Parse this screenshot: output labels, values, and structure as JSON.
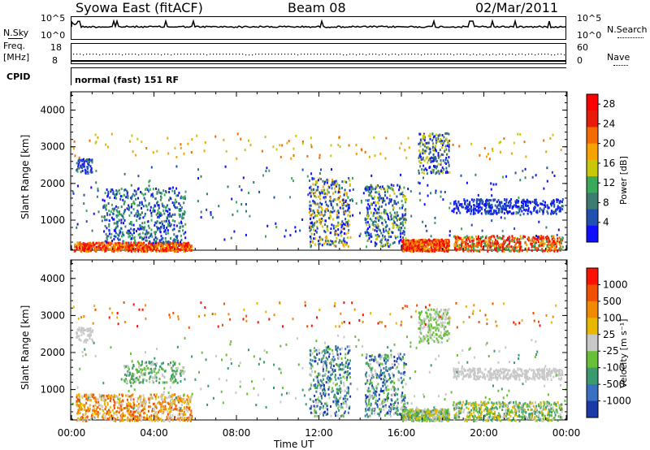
{
  "header": {
    "station": "Syowa East (fitACF)",
    "beam": "Beam 08",
    "date": "02/Mar/2011"
  },
  "top_panels": {
    "nsky_label": "N.Sky",
    "nsearch_label": "N.Search",
    "nsky_ticks": [
      "10^5",
      "10^0"
    ],
    "nsearch_ticks": [
      "10^5",
      "10^0"
    ],
    "freq_label_1": "Freq.",
    "freq_label_2": "[MHz]",
    "freq_ticks": [
      "18",
      "8"
    ],
    "nave_label": "Nave",
    "nave_ticks": [
      "60",
      "0"
    ],
    "cpid_label": "CPID",
    "cpid_value": "normal (fast) 151 RF"
  },
  "colors": {
    "power_scale": [
      "#1010ff",
      "#2050b0",
      "#3c7c70",
      "#3aaa58",
      "#c8c80a",
      "#f5a300",
      "#f56a00",
      "#e81a0a",
      "#ff0000"
    ],
    "velocity_scale": [
      "#1a3aa8",
      "#3a70c0",
      "#3c9a70",
      "#68c038",
      "#c8c8c8",
      "#e8b800",
      "#f08a00",
      "#f05000",
      "#ff1000"
    ]
  },
  "chart_data": [
    {
      "type": "heatmap",
      "ylabel": "Slant Range [km]",
      "xlabel": "",
      "x_ticks": [
        "00:00",
        "04:00",
        "08:00",
        "12:00",
        "16:00",
        "20:00",
        "00:00"
      ],
      "y_ticks": [
        "1000",
        "2000",
        "3000",
        "4000"
      ],
      "ylim": [
        180,
        4500
      ],
      "xlim_hours": [
        0,
        24
      ],
      "colorbar": {
        "label": "Power [dB]",
        "ticks": [
          "4",
          "8",
          "12",
          "16",
          "20",
          "24",
          "28"
        ],
        "range": [
          0,
          30
        ]
      }
    },
    {
      "type": "heatmap",
      "ylabel": "Slant Range [km]",
      "xlabel": "Time UT",
      "x_ticks": [
        "00:00",
        "04:00",
        "08:00",
        "12:00",
        "16:00",
        "20:00",
        "00:00"
      ],
      "y_ticks": [
        "1000",
        "2000",
        "3000",
        "4000"
      ],
      "ylim": [
        180,
        4500
      ],
      "xlim_hours": [
        0,
        24
      ],
      "colorbar": {
        "label": "Velocity [m s⁻¹]",
        "ticks": [
          "1000",
          "500",
          "100",
          "25",
          "-25",
          "-100",
          "-500",
          "-1000"
        ],
        "range": [
          -1000,
          1000
        ]
      }
    }
  ]
}
